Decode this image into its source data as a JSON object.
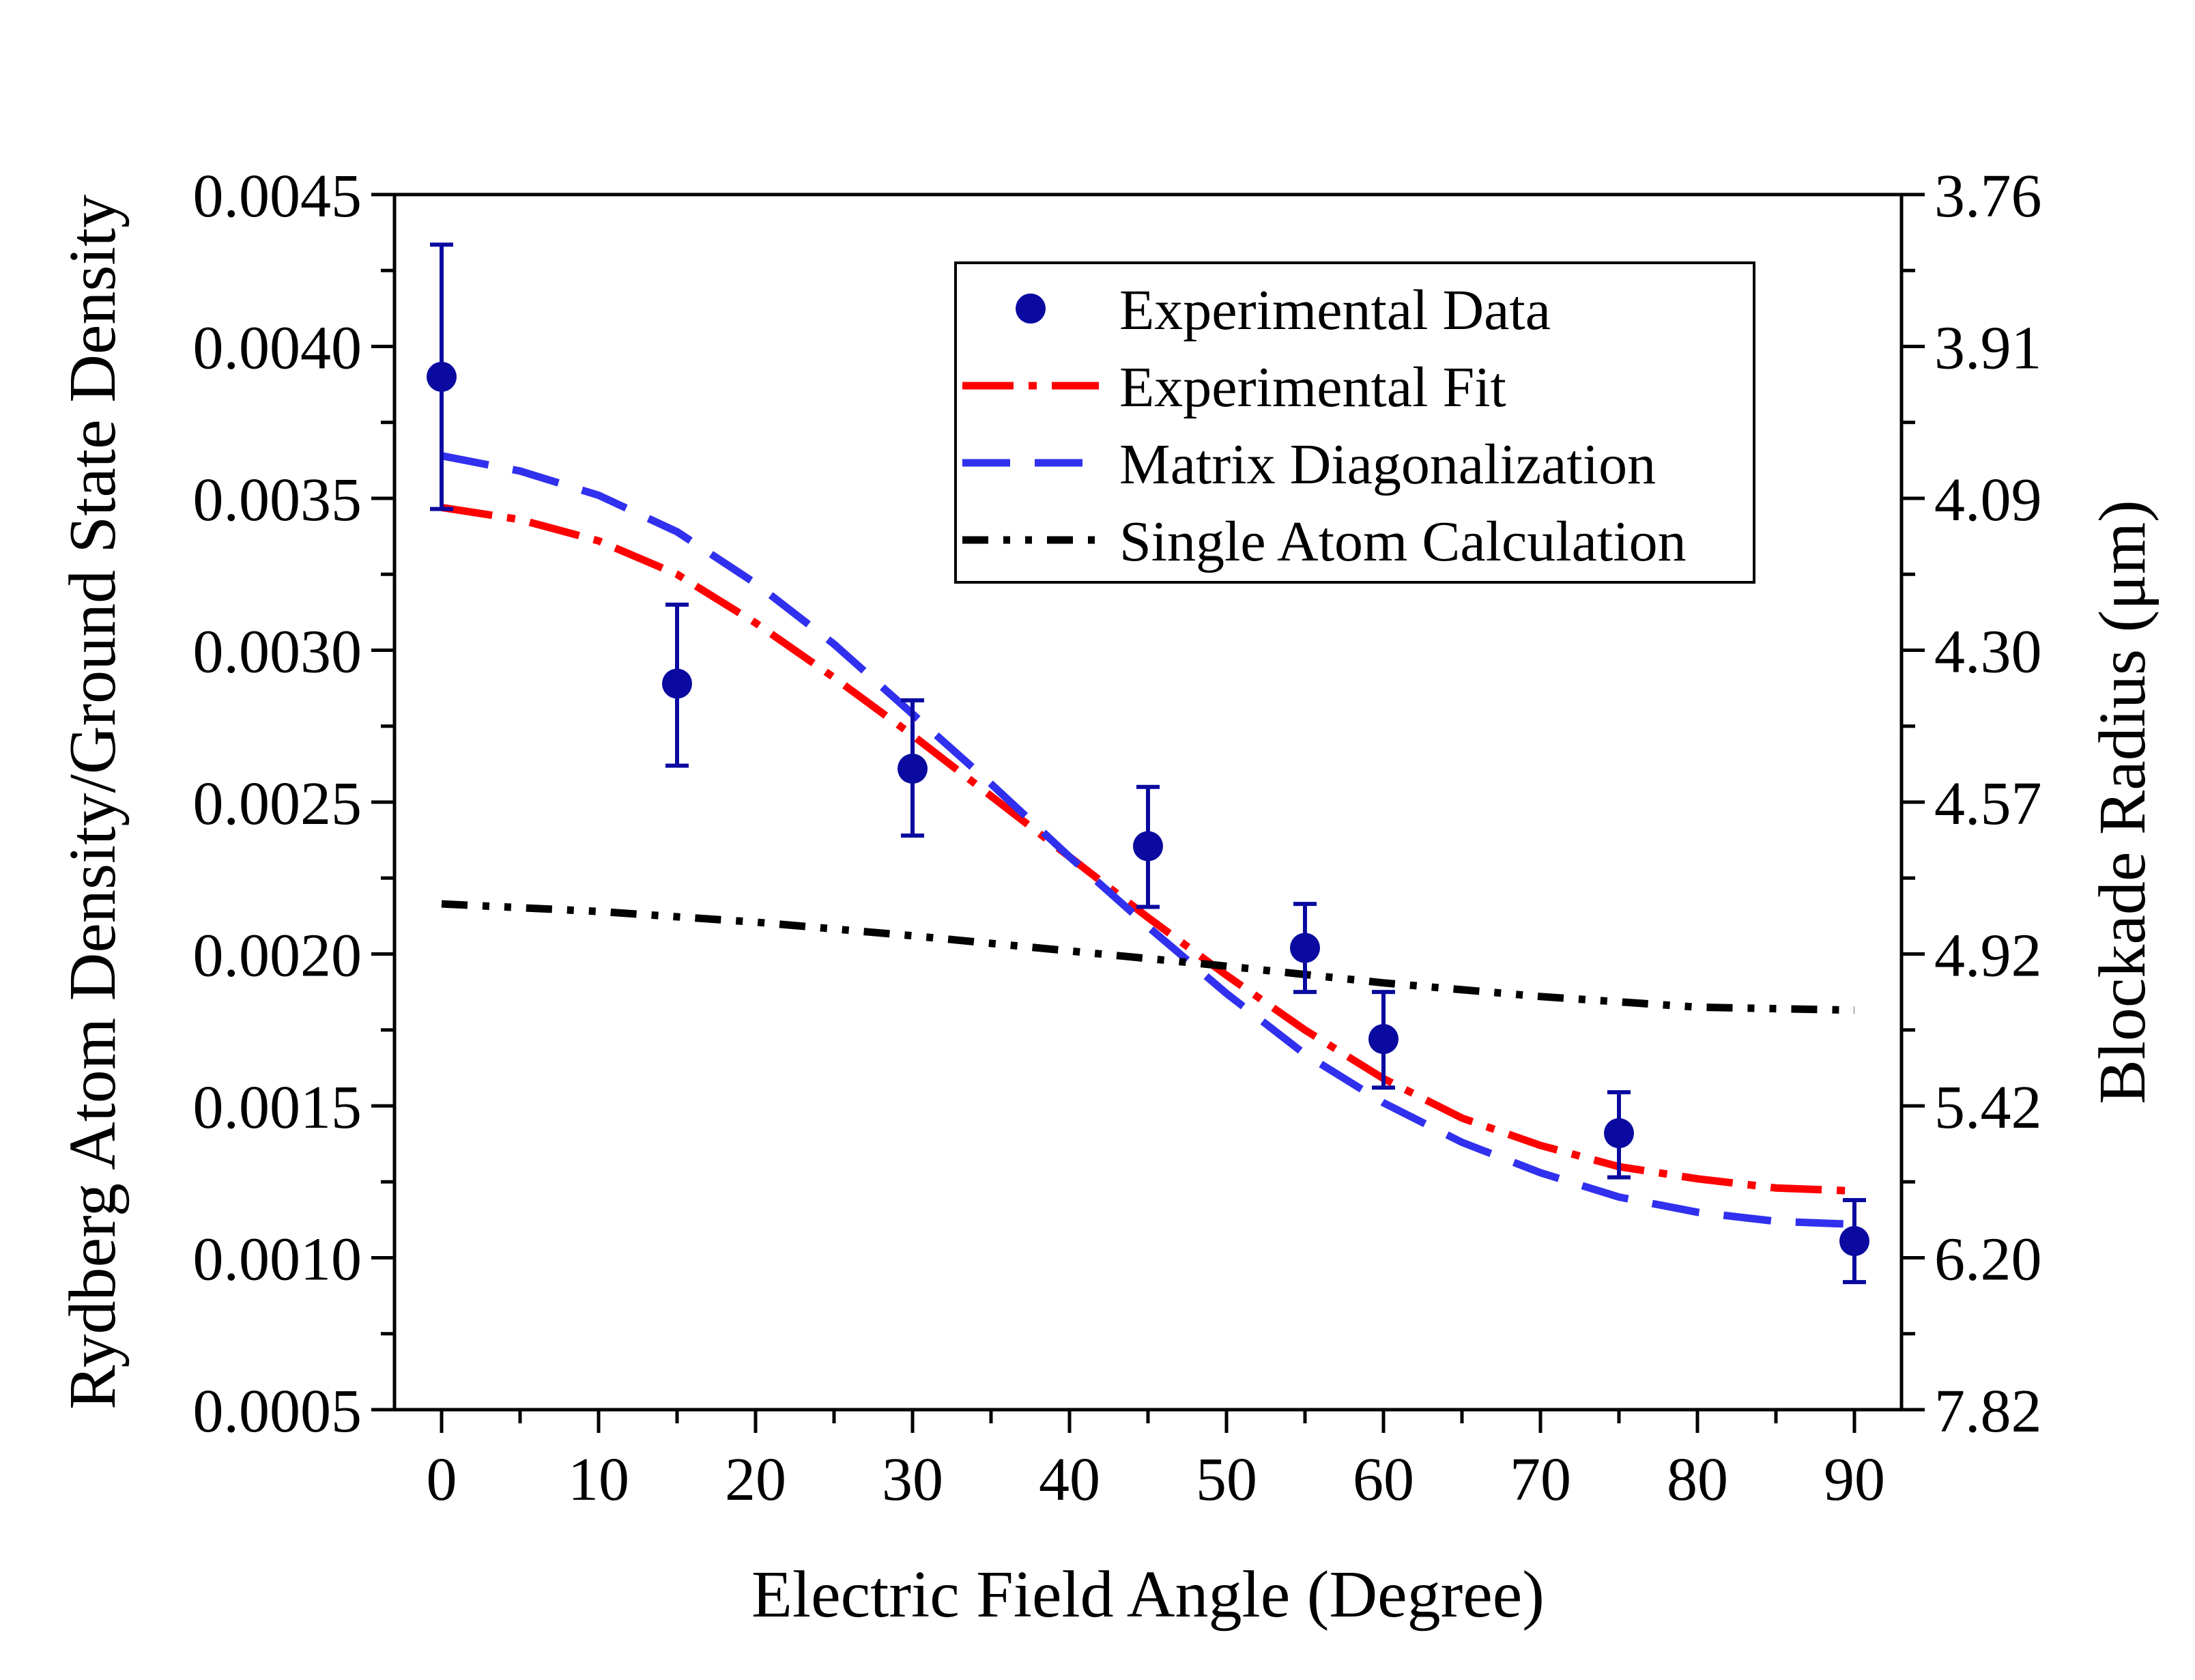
{
  "chart_data": {
    "type": "scatter",
    "xlabel": "Electric Field Angle (Degree)",
    "ylabel": "Rydberg Atom Density/Ground State Density",
    "y2label": "Blockade Radius (μm)",
    "xlim": [
      -3,
      93
    ],
    "ylim": [
      0.0005,
      0.0045
    ],
    "x_ticks": [
      0,
      10,
      20,
      30,
      40,
      50,
      60,
      70,
      80,
      90
    ],
    "x_tick_labels": [
      "0",
      "10",
      "20",
      "30",
      "40",
      "50",
      "60",
      "70",
      "80",
      "90"
    ],
    "y_ticks": [
      0.0005,
      0.001,
      0.0015,
      0.002,
      0.0025,
      0.003,
      0.0035,
      0.004,
      0.0045
    ],
    "y_tick_labels": [
      "0.0005",
      "0.0010",
      "0.0015",
      "0.0020",
      "0.0025",
      "0.0030",
      "0.0035",
      "0.0040",
      "0.0045"
    ],
    "y2_tick_labels": [
      "7.82",
      "6.20",
      "5.42",
      "4.92",
      "4.57",
      "4.30",
      "4.09",
      "3.91",
      "3.76"
    ],
    "legend_position": "top-right",
    "grid": false,
    "series": [
      {
        "name": "Experimental Data",
        "kind": "errorbar",
        "color": "#0a0aa0",
        "x": [
          0,
          15,
          30,
          45,
          55,
          60,
          75,
          90
        ],
        "y": [
          0.0039,
          0.00289,
          0.00261,
          0.002355,
          0.00202,
          0.00172,
          0.00141,
          0.001055
        ],
        "yerr_low": [
          0.000435,
          0.00027,
          0.00022,
          0.0002,
          0.000145,
          0.00016,
          0.000145,
          0.000135
        ],
        "yerr_high": [
          0.000435,
          0.00026,
          0.000225,
          0.000195,
          0.000145,
          0.000155,
          0.000135,
          0.000135
        ]
      },
      {
        "name": "Experimental Fit",
        "kind": "line",
        "style": "dashdot",
        "color": "#ff0000",
        "x": [
          0,
          5,
          10,
          15,
          20,
          25,
          30,
          35,
          40,
          45,
          50,
          55,
          60,
          65,
          70,
          75,
          80,
          85,
          90
        ],
        "y": [
          0.00347,
          0.00343,
          0.00336,
          0.00325,
          0.00309,
          0.00291,
          0.00272,
          0.00252,
          0.00232,
          0.00212,
          0.00193,
          0.00175,
          0.00159,
          0.00146,
          0.00137,
          0.0013,
          0.00126,
          0.00123,
          0.00122
        ]
      },
      {
        "name": "Matrix Diagonalization",
        "kind": "line",
        "style": "dashed",
        "color": "#3030ee",
        "x": [
          0,
          5,
          10,
          15,
          20,
          25,
          30,
          35,
          40,
          45,
          50,
          55,
          60,
          65,
          70,
          75,
          80,
          85,
          90
        ],
        "y": [
          0.00364,
          0.00359,
          0.00351,
          0.00339,
          0.00322,
          0.00302,
          0.00279,
          0.00256,
          0.00232,
          0.00209,
          0.00187,
          0.00167,
          0.00151,
          0.00138,
          0.00128,
          0.0012,
          0.00115,
          0.00112,
          0.00111
        ]
      },
      {
        "name": "Single Atom Calculation",
        "kind": "line",
        "style": "dashdotdot",
        "color": "#000000",
        "x": [
          0,
          10,
          20,
          30,
          40,
          50,
          60,
          70,
          80,
          90
        ],
        "y": [
          0.002165,
          0.00214,
          0.002105,
          0.00206,
          0.00201,
          0.00196,
          0.001905,
          0.00186,
          0.001825,
          0.001815
        ]
      }
    ]
  }
}
